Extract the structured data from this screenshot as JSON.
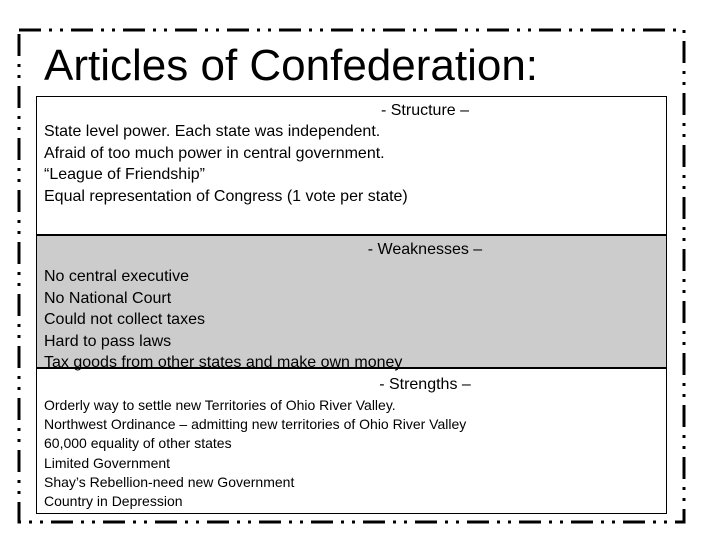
{
  "slide": {
    "title": "Articles of Confederation:",
    "sections": [
      {
        "heading": "-   Structure –",
        "lines": [
          "State level power.  Each state was independent.",
          "Afraid of too much power in central government.",
          "“League of Friendship”",
          "Equal representation of Congress (1 vote per state)"
        ]
      },
      {
        "heading": "-   Weaknesses –",
        "lines": [
          "No central executive",
          "No National Court",
          "Could not collect taxes",
          "Hard to pass laws",
          "Tax goods from other states and make own money"
        ]
      },
      {
        "heading": "-   Strengths –",
        "lines": [
          "Orderly way to settle new Territories of Ohio River Valley.",
          "Northwest Ordinance – admitting new territories of Ohio River Valley",
          "60,000 equality of other states",
          "Limited Government",
          "Shay’s Rebellion-need new Government",
          "Country in Depression"
        ]
      }
    ],
    "colors": {
      "weaknesses_background": "#cccccc",
      "border": "#000000"
    }
  }
}
